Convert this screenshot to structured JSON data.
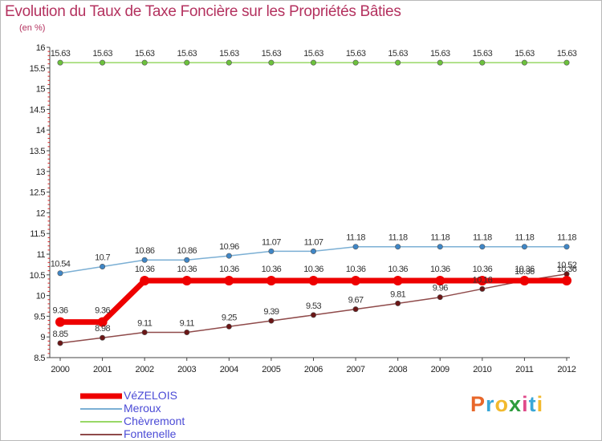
{
  "title": "Evolution du Taux de Taxe Foncière sur les Propriétés Bâties",
  "unit": "(en %)",
  "logo": {
    "text": "Proxiti",
    "colors": [
      "#e8672a",
      "#39a7d8",
      "#f2b92d",
      "#2e9c3d",
      "#e04a8a",
      "#39a7d8",
      "#f2b92d"
    ]
  },
  "chart_data": {
    "type": "line",
    "title": "Evolution du Taux de Taxe Foncière sur les Propriétés Bâties",
    "ylabel": "(en %)",
    "xlabel": "",
    "categories": [
      "2000",
      "2001",
      "2002",
      "2003",
      "2004",
      "2005",
      "2006",
      "2007",
      "2008",
      "2009",
      "2010",
      "2011",
      "2012"
    ],
    "ylim": [
      8.5,
      16
    ],
    "yticks": [
      "8.5",
      "9",
      "9.5",
      "10",
      "10.5",
      "11",
      "11.5",
      "12",
      "12.5",
      "13",
      "13.5",
      "14",
      "14.5",
      "15",
      "15.5",
      "16"
    ],
    "series": [
      {
        "name": "VéZELOIS",
        "color": "#ee0000",
        "dot": "#ee0000",
        "width": 7,
        "r": 6,
        "values": [
          9.36,
          9.36,
          10.36,
          10.36,
          10.36,
          10.36,
          10.36,
          10.36,
          10.36,
          10.36,
          10.36,
          10.36,
          10.36
        ],
        "labels": [
          "9.36",
          "9.36",
          "10.36",
          "10.36",
          "10.36",
          "10.36",
          "10.36",
          "10.36",
          "10.36",
          "10.36",
          "10.36",
          "10.36",
          "10.36"
        ]
      },
      {
        "name": "Meroux",
        "color": "#7bafd4",
        "dot": "#3f86c6",
        "width": 1.5,
        "r": 3.2,
        "values": [
          10.54,
          10.7,
          10.86,
          10.86,
          10.96,
          11.07,
          11.07,
          11.18,
          11.18,
          11.18,
          11.18,
          11.18,
          11.18
        ],
        "labels": [
          "10.54",
          "10.7",
          "10.86",
          "10.86",
          "10.96",
          "11.07",
          "11.07",
          "11.18",
          "11.18",
          "11.18",
          "11.18",
          "11.18",
          "11.18"
        ]
      },
      {
        "name": "Chèvremont",
        "color": "#98d866",
        "dot": "#6cc23c",
        "width": 1.5,
        "r": 3.2,
        "values": [
          15.63,
          15.63,
          15.63,
          15.63,
          15.63,
          15.63,
          15.63,
          15.63,
          15.63,
          15.63,
          15.63,
          15.63,
          15.63
        ],
        "labels": [
          "15.63",
          "15.63",
          "15.63",
          "15.63",
          "15.63",
          "15.63",
          "15.63",
          "15.63",
          "15.63",
          "15.63",
          "15.63",
          "15.63",
          "15.63"
        ]
      },
      {
        "name": "Fontenelle",
        "color": "#8f4a4a",
        "dot": "#6b1616",
        "width": 1.5,
        "r": 3.2,
        "values": [
          8.85,
          8.98,
          9.11,
          9.11,
          9.25,
          9.39,
          9.53,
          9.67,
          9.81,
          9.96,
          10.16,
          10.36,
          10.52
        ],
        "labels": [
          "8.85",
          "8.98",
          "9.11",
          "9.11",
          "9.25",
          "9.39",
          "9.53",
          "9.67",
          "9.81",
          "9.96",
          "10.16",
          "10.36",
          "10.52"
        ]
      }
    ],
    "legend": "bottom-left",
    "grid": false
  }
}
